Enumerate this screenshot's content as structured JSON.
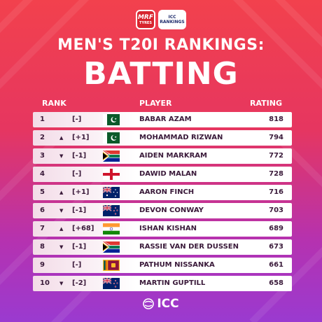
{
  "logos": {
    "mrf": {
      "name": "MRF",
      "sub": "TYRES"
    },
    "icc": {
      "line1": "ICC",
      "line2": "RANKINGS"
    }
  },
  "header": {
    "subtitle": "MEN'S T20I RANKINGS:",
    "title": "BATTING"
  },
  "table": {
    "columns": {
      "rank": "RANK",
      "player": "PLAYER",
      "rating": "RATING"
    },
    "rows": [
      {
        "rank": "1",
        "trend": "none",
        "change": "[-]",
        "flag": "pakistan-flag",
        "player": "BABAR AZAM",
        "rating": "818"
      },
      {
        "rank": "2",
        "trend": "up",
        "change": "[+1]",
        "flag": "pakistan-flag",
        "player": "MOHAMMAD RIZWAN",
        "rating": "794"
      },
      {
        "rank": "3",
        "trend": "down",
        "change": "[-1]",
        "flag": "south-africa-flag",
        "player": "AIDEN MARKRAM",
        "rating": "772"
      },
      {
        "rank": "4",
        "trend": "none",
        "change": "[-]",
        "flag": "england-flag",
        "player": "DAWID MALAN",
        "rating": "728"
      },
      {
        "rank": "5",
        "trend": "up",
        "change": "[+1]",
        "flag": "australia-flag",
        "player": "AARON FINCH",
        "rating": "716"
      },
      {
        "rank": "6",
        "trend": "down",
        "change": "[-1]",
        "flag": "new-zealand-flag",
        "player": "DEVON CONWAY",
        "rating": "703"
      },
      {
        "rank": "7",
        "trend": "up",
        "change": "[+68]",
        "flag": "india-flag",
        "player": "ISHAN KISHAN",
        "rating": "689"
      },
      {
        "rank": "8",
        "trend": "down",
        "change": "[-1]",
        "flag": "south-africa-flag",
        "player": "RASSIE VAN DER DUSSEN",
        "rating": "673"
      },
      {
        "rank": "9",
        "trend": "none",
        "change": "[-]",
        "flag": "sri-lanka-flag",
        "player": "PATHUM NISSANKA",
        "rating": "661"
      },
      {
        "rank": "10",
        "trend": "down",
        "change": "[-2]",
        "flag": "new-zealand-flag",
        "player": "MARTIN GUPTILL",
        "rating": "658"
      }
    ]
  },
  "footer": {
    "brand": "ICC"
  },
  "colors": {
    "bg_top": "#f2414d",
    "bg_bottom": "#9a3ad0",
    "row_text": "#3a1a3a"
  }
}
